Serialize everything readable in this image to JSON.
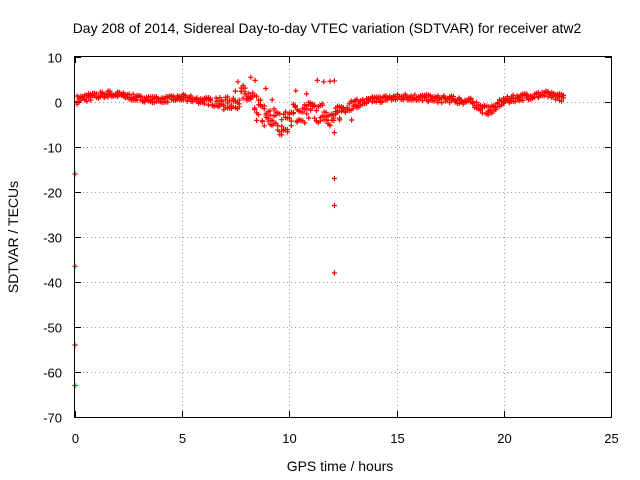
{
  "chart_data": {
    "type": "scatter",
    "title": "Day 208 of 2014, Sidereal Day-to-day VTEC variation (SDTVAR) for receiver atw2",
    "xlabel": "GPS time / hours",
    "ylabel": "SDTVAR / TECUs",
    "xlim": [
      0,
      25
    ],
    "ylim": [
      -70,
      10
    ],
    "xticks": [
      0,
      5,
      10,
      15,
      20,
      25
    ],
    "yticks": [
      10,
      0,
      -10,
      -20,
      -30,
      -40,
      -50,
      -60,
      -70
    ],
    "grid": true,
    "marker": "+",
    "color": "#ff0000",
    "band": {
      "x": [
        0.1,
        0.5,
        1,
        1.5,
        2,
        2.5,
        3,
        3.5,
        4,
        4.5,
        5,
        5.5,
        6,
        6.5,
        7,
        7.5,
        8,
        8.3,
        8.6,
        9,
        9.3,
        9.6,
        10,
        10.3,
        10.6,
        11,
        11.3,
        11.6,
        12,
        12.3,
        12.6,
        13,
        13.5,
        14,
        14.5,
        15,
        15.5,
        16,
        16.5,
        17,
        17.5,
        18,
        18.5,
        19,
        19.3,
        19.6,
        20,
        20.5,
        21,
        21.5,
        22,
        22.5,
        22.8
      ],
      "y": [
        0.5,
        1,
        1.3,
        1.8,
        1.6,
        1.2,
        0.8,
        0.6,
        0.5,
        0.7,
        0.9,
        0.6,
        0.3,
        0,
        -0.5,
        0.5,
        1.5,
        -1,
        -2,
        -4,
        -3.5,
        -5,
        -4,
        -2,
        -3,
        -1.5,
        -3,
        -2,
        -4,
        -2.5,
        -1,
        -0.5,
        0,
        0.5,
        0.8,
        1,
        1.2,
        1,
        0.8,
        0.6,
        0.6,
        0.3,
        0,
        -1.5,
        -2,
        -1,
        0.2,
        0.8,
        1.2,
        1.5,
        1.6,
        1.3,
        0.8
      ],
      "halfwidth": [
        1,
        1,
        0.8,
        0.8,
        0.8,
        0.7,
        0.7,
        0.7,
        0.7,
        0.7,
        0.8,
        0.8,
        0.8,
        1,
        1.5,
        2,
        3,
        3,
        3,
        2.5,
        2.5,
        2.5,
        2.5,
        2.5,
        2.5,
        2,
        2,
        2,
        2,
        2,
        1.5,
        1,
        0.8,
        0.8,
        0.8,
        0.8,
        0.8,
        0.8,
        0.8,
        0.8,
        0.8,
        0.8,
        0.8,
        1,
        1,
        1,
        0.8,
        0.8,
        0.8,
        0.8,
        0.8,
        0.8,
        0.8
      ]
    },
    "extra_points": [
      {
        "x": 8.2,
        "y": 5.5
      },
      {
        "x": 8.4,
        "y": 4.8
      },
      {
        "x": 7.6,
        "y": 4.5
      },
      {
        "x": 8.9,
        "y": 3
      },
      {
        "x": 9.2,
        "y": 0.5
      },
      {
        "x": 10.3,
        "y": 2.5
      },
      {
        "x": 10.8,
        "y": 1.8
      },
      {
        "x": 11.3,
        "y": 4.8
      },
      {
        "x": 11.6,
        "y": 4.5
      },
      {
        "x": 11.9,
        "y": 4.6
      },
      {
        "x": 12.1,
        "y": 4.7
      },
      {
        "x": 12.9,
        "y": -4
      },
      {
        "x": 12.1,
        "y": -6.8
      },
      {
        "x": 12.1,
        "y": -17
      },
      {
        "x": 12.1,
        "y": -23
      },
      {
        "x": 12.1,
        "y": -38
      },
      {
        "x": 0.0,
        "y": -16
      },
      {
        "x": 0.0,
        "y": -36.5
      },
      {
        "x": 0.0,
        "y": -54
      },
      {
        "x": 0.0,
        "y": -63
      }
    ]
  }
}
